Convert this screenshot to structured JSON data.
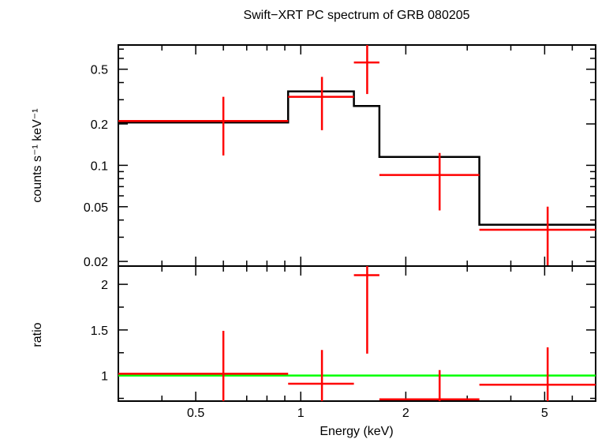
{
  "chart_data": [
    {
      "type": "scatter",
      "title": "Swift−XRT PC spectrum of GRB 080205",
      "xlabel": "",
      "ylabel": "counts s⁻¹ keV⁻¹",
      "xscale": "log",
      "yscale": "log",
      "xlim": [
        0.3,
        7
      ],
      "ylim": [
        0.0185,
        0.75
      ],
      "yticks": [
        0.02,
        0.05,
        0.1,
        0.2,
        0.5
      ],
      "ytick_labels": [
        "0.02",
        "0.05",
        "0.1",
        "0.2",
        "0.5"
      ],
      "series": [
        {
          "kind": "error-bars",
          "color": "#ff0000",
          "points": [
            {
              "x": 0.6,
              "xlo": 0.3,
              "xhi": 0.92,
              "y": 0.21,
              "ylo": 0.118,
              "yhi": 0.315
            },
            {
              "x": 1.15,
              "xlo": 0.92,
              "xhi": 1.42,
              "y": 0.315,
              "ylo": 0.18,
              "yhi": 0.44
            },
            {
              "x": 1.55,
              "xlo": 1.42,
              "xhi": 1.68,
              "y": 0.56,
              "ylo": 0.33,
              "yhi": 0.75
            },
            {
              "x": 2.5,
              "xlo": 1.68,
              "xhi": 3.25,
              "y": 0.085,
              "ylo": 0.047,
              "yhi": 0.123
            },
            {
              "x": 5.1,
              "xlo": 3.25,
              "xhi": 7.0,
              "y": 0.034,
              "ylo": 0.0185,
              "yhi": 0.05
            }
          ]
        },
        {
          "kind": "step-model",
          "color": "#000000",
          "steps": [
            {
              "xlo": 0.3,
              "xhi": 0.92,
              "y": 0.205
            },
            {
              "xlo": 0.92,
              "xhi": 1.42,
              "y": 0.345
            },
            {
              "xlo": 1.42,
              "xhi": 1.68,
              "y": 0.27
            },
            {
              "xlo": 1.68,
              "xhi": 3.25,
              "y": 0.115
            },
            {
              "xlo": 3.25,
              "xhi": 7.0,
              "y": 0.037
            }
          ]
        }
      ]
    },
    {
      "type": "scatter",
      "title": "",
      "xlabel": "Energy (keV)",
      "ylabel": "ratio",
      "xscale": "log",
      "yscale": "linear",
      "xlim": [
        0.3,
        7
      ],
      "ylim": [
        0.72,
        2.2
      ],
      "xticks": [
        0.5,
        1,
        2,
        5
      ],
      "xtick_labels": [
        "0.5",
        "1",
        "2",
        "5"
      ],
      "yticks": [
        1,
        1.5,
        2
      ],
      "ytick_labels": [
        "1",
        "1.5",
        "2"
      ],
      "reference_line": {
        "y": 1,
        "color": "#00ff00"
      },
      "series": [
        {
          "kind": "error-bars",
          "color": "#ff0000",
          "points": [
            {
              "x": 0.6,
              "xlo": 0.3,
              "xhi": 0.92,
              "y": 1.02,
              "ylo": 0.72,
              "yhi": 1.49
            },
            {
              "x": 1.15,
              "xlo": 0.92,
              "xhi": 1.42,
              "y": 0.91,
              "ylo": 0.72,
              "yhi": 1.28
            },
            {
              "x": 1.55,
              "xlo": 1.42,
              "xhi": 1.68,
              "y": 2.1,
              "ylo": 1.24,
              "yhi": 2.2
            },
            {
              "x": 2.5,
              "xlo": 1.68,
              "xhi": 3.25,
              "y": 0.74,
              "ylo": 0.72,
              "yhi": 1.06
            },
            {
              "x": 5.1,
              "xlo": 3.25,
              "xhi": 7.0,
              "y": 0.9,
              "ylo": 0.72,
              "yhi": 1.31
            }
          ]
        }
      ]
    }
  ]
}
